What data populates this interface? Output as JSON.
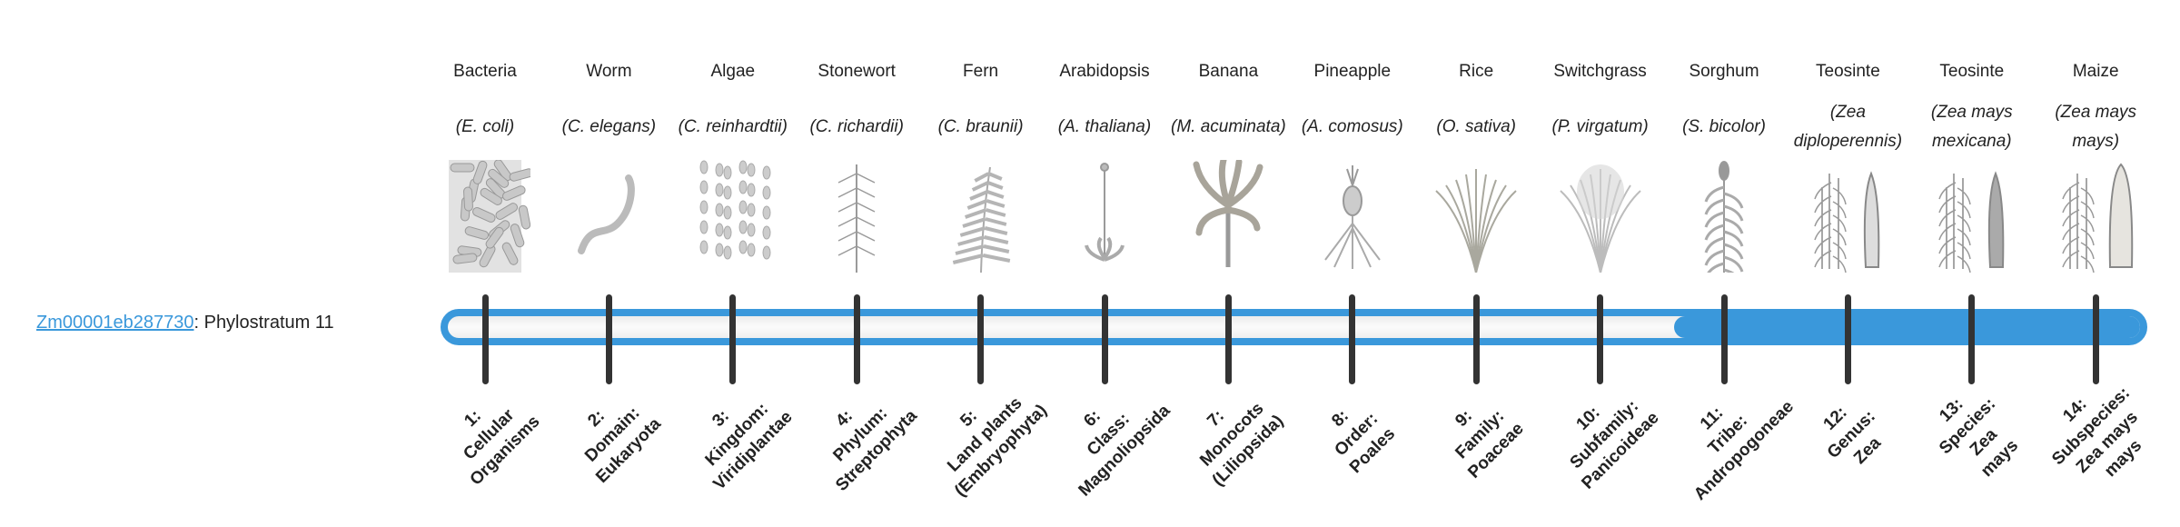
{
  "gene": {
    "id_link": "Zm00001eb287730",
    "suffix": ": Phylostratum 11"
  },
  "phylostratum": {
    "current": 11,
    "total": 14
  },
  "colors": {
    "accent": "#3a98db",
    "tick": "#333333"
  },
  "strata": [
    {
      "common": "Bacteria",
      "scientific": "(E. coli)",
      "icon": "bacteria-icon",
      "rank": [
        "1:",
        "Cellular",
        "Organisms"
      ]
    },
    {
      "common": "Worm",
      "scientific": "(C. elegans)",
      "icon": "worm-icon",
      "rank": [
        "2:",
        "Domain:",
        "Eukaryota"
      ]
    },
    {
      "common": "Algae",
      "scientific": "(C. reinhardtii)",
      "icon": "algae-icon",
      "rank": [
        "3:",
        "Kingdom:",
        "Viridiplantae"
      ]
    },
    {
      "common": "Stonewort",
      "scientific": "(C. richardii)",
      "icon": "stonewort-icon",
      "rank": [
        "4:",
        "Phylum:",
        "Streptophyta"
      ]
    },
    {
      "common": "Fern",
      "scientific": "(C. braunii)",
      "icon": "fern-icon",
      "rank": [
        "5:",
        "Land plants",
        "(Embryophyta)"
      ]
    },
    {
      "common": "Arabidopsis",
      "scientific": "(A. thaliana)",
      "icon": "arabidopsis-icon",
      "rank": [
        "6:",
        "Class:",
        "Magnoliopsida"
      ]
    },
    {
      "common": "Banana",
      "scientific": "(M. acuminata)",
      "icon": "banana-icon",
      "rank": [
        "7:",
        "Monocots",
        "(Liliopsida)"
      ]
    },
    {
      "common": "Pineapple",
      "scientific": "(A. comosus)",
      "icon": "pineapple-icon",
      "rank": [
        "8:",
        "Order:",
        "Poales"
      ]
    },
    {
      "common": "Rice",
      "scientific": "(O. sativa)",
      "icon": "rice-icon",
      "rank": [
        "9:",
        "Family:",
        "Poaceae"
      ]
    },
    {
      "common": "Switchgrass",
      "scientific": "(P. virgatum)",
      "icon": "switchgrass-icon",
      "rank": [
        "10:",
        "Subfamily:",
        "Panicoideae"
      ]
    },
    {
      "common": "Sorghum",
      "scientific": "(S. bicolor)",
      "icon": "sorghum-icon",
      "rank": [
        "11:",
        "Tribe:",
        "Andropogoneae"
      ]
    },
    {
      "common": "Teosinte",
      "scientific": "(Zea diploperennis)",
      "icon": "teosinte-icon",
      "rank": [
        "12:",
        "Genus:",
        "Zea"
      ]
    },
    {
      "common": "Teosinte",
      "scientific": "(Zea mays mexicana)",
      "icon": "teosinte-mexicana-icon",
      "rank": [
        "13:",
        "Species:",
        "Zea",
        "mays"
      ]
    },
    {
      "common": "Maize",
      "scientific": "(Zea mays mays)",
      "icon": "maize-icon",
      "rank": [
        "14:",
        "Subspecies:",
        "Zea mays",
        "mays"
      ]
    }
  ]
}
